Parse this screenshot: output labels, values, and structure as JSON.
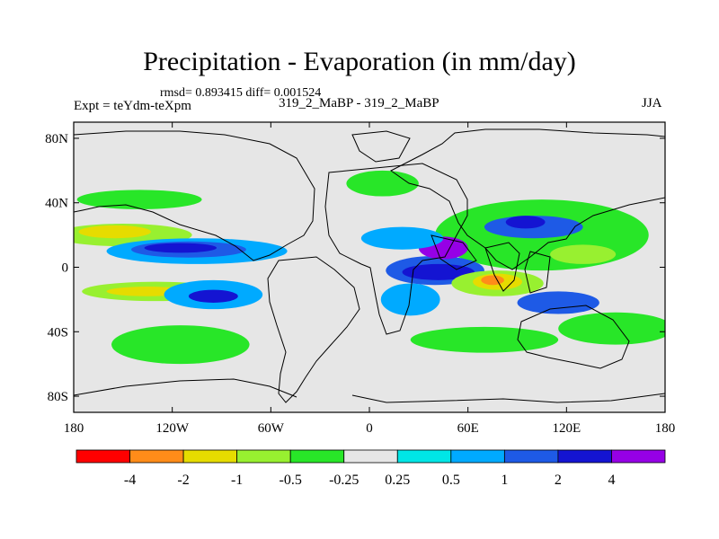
{
  "title": "Precipitation - Evaporation (in mm/day)",
  "stats": "rmsd= 0.893415 diff= 0.001524",
  "experiment_label": "Expt = teYdm-teXpm",
  "case_label": "319_2_MaBP - 319_2_MaBP",
  "season": "JJA",
  "chart_data": {
    "type": "heatmap",
    "projection": "cylindrical-equidistant",
    "xlim": [
      -180,
      180
    ],
    "ylim": [
      -90,
      90
    ],
    "x_ticks": [
      -180,
      -120,
      -60,
      0,
      60,
      120,
      180
    ],
    "x_tick_labels": [
      "180",
      "120W",
      "60W",
      "0",
      "60E",
      "120E",
      "180"
    ],
    "y_ticks": [
      80,
      40,
      0,
      -40,
      -80
    ],
    "y_tick_labels": [
      "80N",
      "40N",
      "0",
      "40S",
      "80S"
    ],
    "colorbar": {
      "orientation": "horizontal",
      "bins": [
        {
          "color": "#ff0000"
        },
        {
          "color": "#ff8c19"
        },
        {
          "color": "#e6dc00"
        },
        {
          "color": "#98f030"
        },
        {
          "color": "#28e628"
        },
        {
          "color": "#e6e6e6"
        },
        {
          "color": "#00e6e6"
        },
        {
          "color": "#00aaff"
        },
        {
          "color": "#1e5ae6"
        },
        {
          "color": "#1414d2"
        },
        {
          "color": "#9600e6"
        }
      ],
      "boundaries": [
        -4,
        -2,
        -1,
        -0.5,
        -0.25,
        0.25,
        0.5,
        1,
        2,
        4
      ],
      "labels": [
        "-4",
        "-2",
        "-1",
        "-0.5",
        "-0.25",
        "0.25",
        "0.5",
        "1",
        "2",
        "4"
      ]
    },
    "features": [
      {
        "name": "n-pac-dry-band",
        "level": 3,
        "lon": -150,
        "lat": 20,
        "rlon": 42,
        "rlat": 7
      },
      {
        "name": "n-pac-dry-core",
        "level": 2,
        "lon": -155,
        "lat": 22,
        "rlon": 22,
        "rlat": 4
      },
      {
        "name": "n-pac-wet-band",
        "level": 7,
        "lon": -105,
        "lat": 10,
        "rlon": 55,
        "rlat": 8
      },
      {
        "name": "n-pac-wet-mid",
        "level": 8,
        "lon": -110,
        "lat": 11,
        "rlon": 35,
        "rlat": 5
      },
      {
        "name": "n-pac-wet-core",
        "level": 9,
        "lon": -115,
        "lat": 12,
        "rlon": 22,
        "rlat": 3
      },
      {
        "name": "s-pac-dry-band",
        "level": 3,
        "lon": -130,
        "lat": -15,
        "rlon": 45,
        "rlat": 6
      },
      {
        "name": "s-pac-dry-core",
        "level": 2,
        "lon": -135,
        "lat": -15,
        "rlon": 25,
        "rlat": 3
      },
      {
        "name": "s-pac-wet-band",
        "level": 7,
        "lon": -95,
        "lat": -17,
        "rlon": 30,
        "rlat": 9
      },
      {
        "name": "s-pac-wet-core",
        "level": 9,
        "lon": -95,
        "lat": -18,
        "rlon": 15,
        "rlat": 4
      },
      {
        "name": "s-pac-green",
        "level": 4,
        "lon": -115,
        "lat": -48,
        "rlon": 42,
        "rlat": 12
      },
      {
        "name": "n-atl-storm-green",
        "level": 4,
        "lon": -140,
        "lat": 42,
        "rlon": 38,
        "rlat": 6
      },
      {
        "name": "europe-green",
        "level": 4,
        "lon": 8,
        "lat": 52,
        "rlon": 22,
        "rlat": 8
      },
      {
        "name": "s-asia-green",
        "level": 4,
        "lon": 105,
        "lat": 20,
        "rlon": 65,
        "rlat": 22
      },
      {
        "name": "indian-ocean-wet",
        "level": 8,
        "lon": 40,
        "lat": -2,
        "rlon": 30,
        "rlat": 9
      },
      {
        "name": "indian-ocean-core",
        "level": 9,
        "lon": 42,
        "lat": -3,
        "rlon": 22,
        "rlat": 5
      },
      {
        "name": "arabia-purple",
        "level": 10,
        "lon": 45,
        "lat": 12,
        "rlon": 15,
        "rlat": 7
      },
      {
        "name": "indian-dry-band",
        "level": 3,
        "lon": 78,
        "lat": -10,
        "rlon": 28,
        "rlat": 8
      },
      {
        "name": "indian-dry-core",
        "level": 2,
        "lon": 78,
        "lat": -9,
        "rlon": 15,
        "rlat": 5
      },
      {
        "name": "indian-dry-center",
        "level": 1,
        "lon": 75,
        "lat": -8,
        "rlon": 7,
        "rlat": 3
      },
      {
        "name": "w-pac-wet",
        "level": 8,
        "lon": 100,
        "lat": 25,
        "rlon": 30,
        "rlat": 7
      },
      {
        "name": "w-pac-core",
        "level": 9,
        "lon": 95,
        "lat": 28,
        "rlon": 12,
        "rlat": 4
      },
      {
        "name": "w-pac-dry",
        "level": 3,
        "lon": 130,
        "lat": 8,
        "rlon": 20,
        "rlat": 6
      },
      {
        "name": "s-ind-wet",
        "level": 8,
        "lon": 115,
        "lat": -22,
        "rlon": 25,
        "rlat": 7
      },
      {
        "name": "s-ind-green",
        "level": 4,
        "lon": 70,
        "lat": -45,
        "rlon": 45,
        "rlat": 8
      },
      {
        "name": "s-pac-e-green",
        "level": 4,
        "lon": 150,
        "lat": -38,
        "rlon": 35,
        "rlat": 10
      },
      {
        "name": "africa-n-wet",
        "level": 7,
        "lon": 20,
        "lat": 18,
        "rlon": 25,
        "rlat": 7
      },
      {
        "name": "africa-s-wet",
        "level": 7,
        "lon": 25,
        "lat": -20,
        "rlon": 18,
        "rlat": 10
      }
    ]
  }
}
